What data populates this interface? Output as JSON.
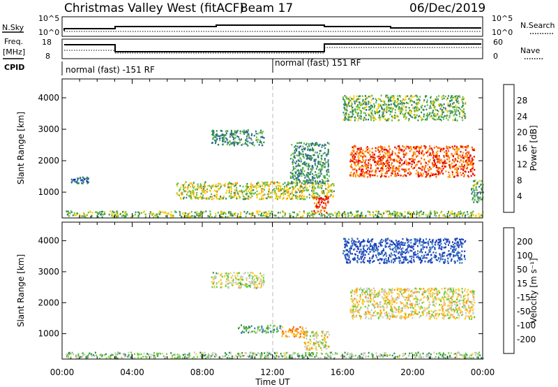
{
  "header": {
    "title": "Christmas Valley West (fitACF)",
    "beam": "Beam 17",
    "date": "06/Dec/2019"
  },
  "status_panels": {
    "nsky_label": "N.Sky",
    "nsearch_label": "N.Search",
    "nsky_ticks": [
      "10^5",
      "10^0"
    ],
    "nsky_right_ticks": [
      "10^5",
      "10^0"
    ],
    "freq_label": "Freq.",
    "freq_unit": "[MHz]",
    "freq_ticks": [
      "18",
      "8"
    ],
    "nave_label": "Nave",
    "nave_ticks": [
      "60",
      "0"
    ],
    "cpid_label": "CPID",
    "cpid_segments": [
      "normal (fast) -151 RF",
      "normal (fast) 151 RF"
    ]
  },
  "chart_data": [
    {
      "type": "heatmap",
      "name": "power-panel",
      "ylabel": "Slant Range [km]",
      "xlabel": "",
      "x_range_hours": [
        0,
        24
      ],
      "ylim": [
        180,
        4600
      ],
      "y_ticks": [
        "1000",
        "2000",
        "3000",
        "4000"
      ],
      "colorbar_label": "Power [dB]",
      "colorbar_ticks": [
        "28",
        "24",
        "20",
        "16",
        "12",
        "8",
        "4"
      ],
      "colorbar_colors": [
        "#e60000",
        "#ff5500",
        "#ff9900",
        "#ffcc00",
        "#66bb44",
        "#2e8b57",
        "#336699",
        "#1a1aff"
      ],
      "regions": [
        {
          "t0": 0.2,
          "t1": 24,
          "r0": 220,
          "r1": 420,
          "level": 0.45
        },
        {
          "t0": 6.5,
          "t1": 15.5,
          "r0": 800,
          "r1": 1350,
          "level": 0.5
        },
        {
          "t0": 14.3,
          "t1": 15.2,
          "r0": 350,
          "r1": 900,
          "level": 0.9
        },
        {
          "t0": 16.4,
          "t1": 23.5,
          "r0": 1500,
          "r1": 2500,
          "level": 0.82
        },
        {
          "t0": 8.5,
          "t1": 11.5,
          "r0": 2500,
          "r1": 3000,
          "level": 0.3
        },
        {
          "t0": 13,
          "t1": 15.2,
          "r0": 1300,
          "r1": 2600,
          "level": 0.3
        },
        {
          "t0": 16,
          "t1": 23,
          "r0": 3300,
          "r1": 4100,
          "level": 0.4
        },
        {
          "t0": 0.5,
          "t1": 1.5,
          "r0": 1300,
          "r1": 1500,
          "level": 0.2
        },
        {
          "t0": 23.3,
          "t1": 24,
          "r0": 700,
          "r1": 1400,
          "level": 0.35
        }
      ]
    },
    {
      "type": "heatmap",
      "name": "velocity-panel",
      "ylabel": "Slant Range [km]",
      "xlabel": "Time UT",
      "x_range_hours": [
        0,
        24
      ],
      "x_ticks": [
        "00:00",
        "04:00",
        "08:00",
        "12:00",
        "16:00",
        "20:00",
        "00:00"
      ],
      "ylim": [
        180,
        4600
      ],
      "y_ticks": [
        "1000",
        "2000",
        "3000",
        "4000"
      ],
      "colorbar_label": "Velocity [m s⁻¹]",
      "colorbar_ticks": [
        "200",
        "100",
        "50",
        "15",
        "-15",
        "-50",
        "-100",
        "-200"
      ],
      "colorbar_colors": [
        "#1f3fbf",
        "#3377bb",
        "#2e8b57",
        "#66cc33",
        "#c8c8c0",
        "#ffcc33",
        "#ff9900",
        "#ff5500",
        "#e60000"
      ],
      "regions": [
        {
          "t0": 0.2,
          "t1": 24,
          "r0": 220,
          "r1": 420,
          "level": 0.6
        },
        {
          "t0": 10,
          "t1": 12.5,
          "r0": 1050,
          "r1": 1300,
          "level": 0.68
        },
        {
          "t0": 12.5,
          "t1": 14,
          "r0": 900,
          "r1": 1250,
          "level": 0.3
        },
        {
          "t0": 13.8,
          "t1": 15.2,
          "r0": 500,
          "r1": 1100,
          "level": 0.45
        },
        {
          "t0": 16.4,
          "t1": 23.5,
          "r0": 1500,
          "r1": 2500,
          "level": 0.45
        },
        {
          "t0": 16,
          "t1": 23,
          "r0": 3300,
          "r1": 4100,
          "level": 0.95
        },
        {
          "t0": 8.5,
          "t1": 11.5,
          "r0": 2500,
          "r1": 3000,
          "level": 0.5
        }
      ]
    }
  ],
  "colors": {
    "axis": "#000000",
    "dashed_marker": "#bbbbbb",
    "background": "#ffffff"
  }
}
